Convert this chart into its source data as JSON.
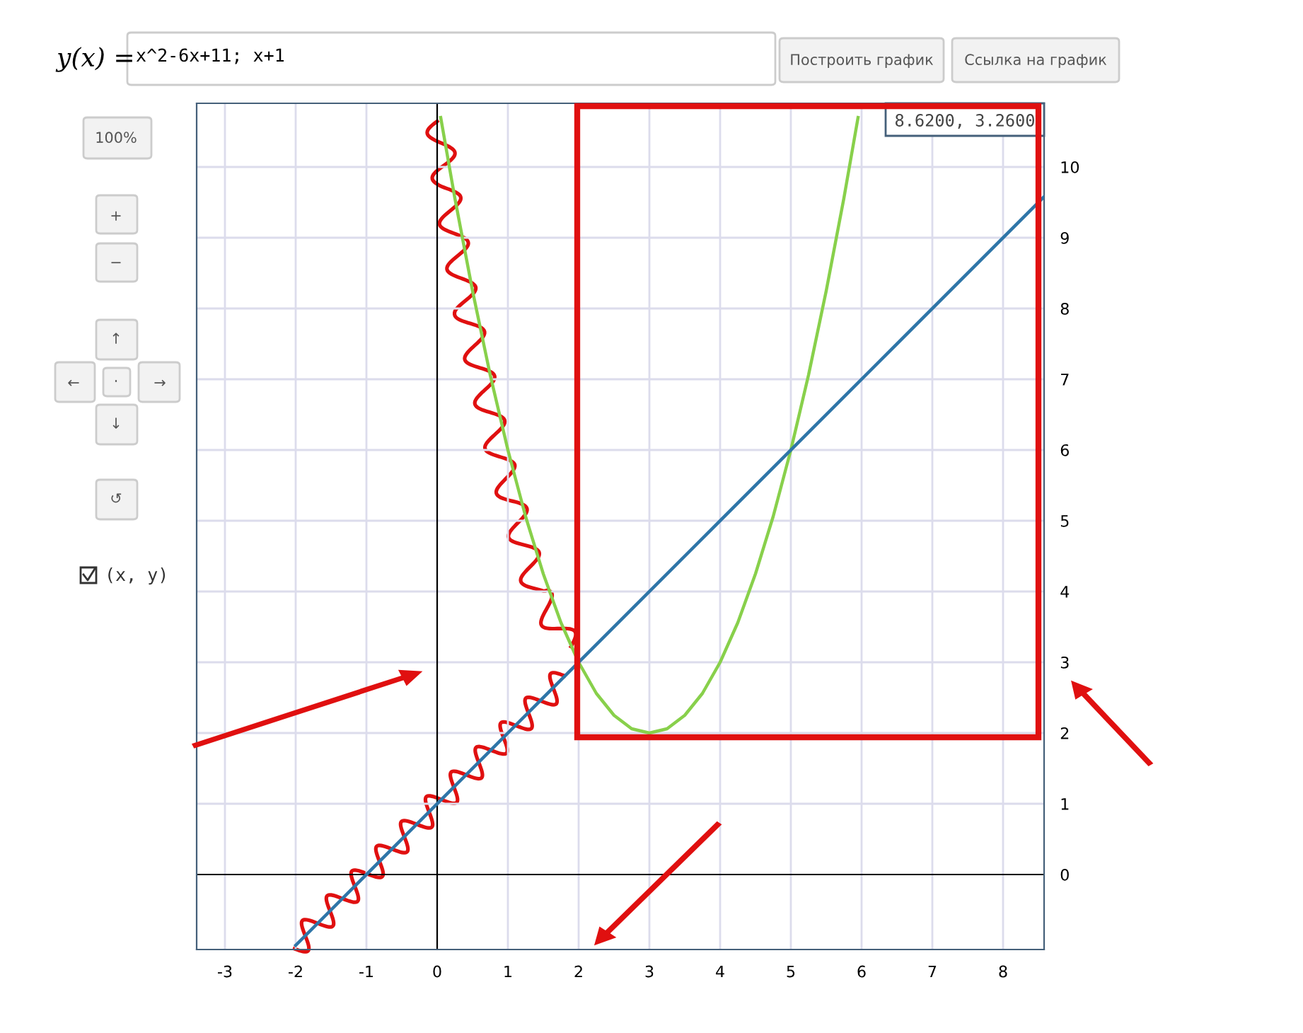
{
  "chart_data": {
    "type": "line",
    "series": [
      {
        "color": "#88d04b",
        "x": [
          0.05,
          0.25,
          0.5,
          0.75,
          1,
          1.25,
          1.5,
          1.75,
          2,
          2.25,
          2.5,
          2.75,
          3,
          3.25,
          3.5,
          3.75,
          4,
          4.25,
          4.5,
          4.75,
          5,
          5.25,
          5.5,
          5.75,
          5.95
        ],
        "values": [
          10.7,
          9.56,
          8.25,
          7.06,
          6,
          5.06,
          4.25,
          3.56,
          3,
          2.56,
          2.25,
          2.06,
          2,
          2.06,
          2.25,
          2.56,
          3,
          3.56,
          4.25,
          5.06,
          6,
          7.06,
          8.25,
          9.56,
          10.7
        ]
      },
      {
        "color": "#2e75a8",
        "x": [
          -2,
          8.58
        ],
        "values": [
          -1,
          9.58
        ]
      }
    ],
    "xlim": [
      -3.4,
      8.58
    ],
    "ylim": [
      -1.06,
      10.9
    ],
    "xticks": [
      -3,
      -2,
      -1,
      0,
      1,
      2,
      3,
      4,
      5,
      6,
      7,
      8
    ],
    "yticks": [
      0,
      1,
      2,
      3,
      4,
      5,
      6,
      7,
      8,
      9,
      10
    ],
    "grid": true,
    "annotations": [
      "y(x) =",
      "x^2-6x+11; x+1",
      "Построить график",
      "Ссылка на график",
      "100%",
      "+",
      "−",
      "↑",
      "←",
      "·",
      "→",
      "↓",
      "↺",
      "(x, y)",
      "8.6200, 3.2600"
    ]
  }
}
